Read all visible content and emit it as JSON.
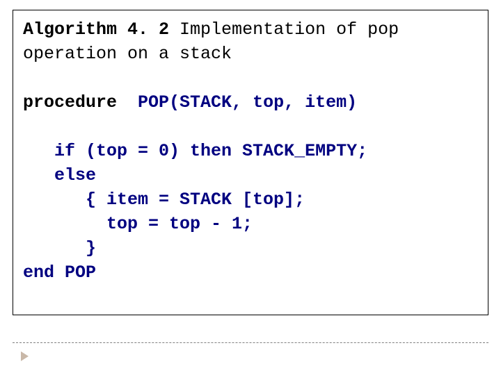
{
  "algorithm": {
    "title_bold": "Algorithm 4. 2",
    "title_rest": " Implementation of pop\noperation on a stack",
    "procedure_keyword": "procedure",
    "procedure_signature": "  POP(STACK, top, item)",
    "code_lines": [
      "   if (top = 0) then STACK_EMPTY;",
      "   else",
      "      { item = STACK [top];",
      "        top = top - 1;",
      "      }",
      "end POP"
    ],
    "colors": {
      "code_color": "#000080",
      "text_color": "#000000",
      "border_color": "#000000",
      "dashed_color": "#808080",
      "bullet_color": "#c9b8a8",
      "background": "#ffffff"
    },
    "font": {
      "family": "Courier New",
      "size_pt": 19,
      "weight_code": "bold"
    }
  }
}
